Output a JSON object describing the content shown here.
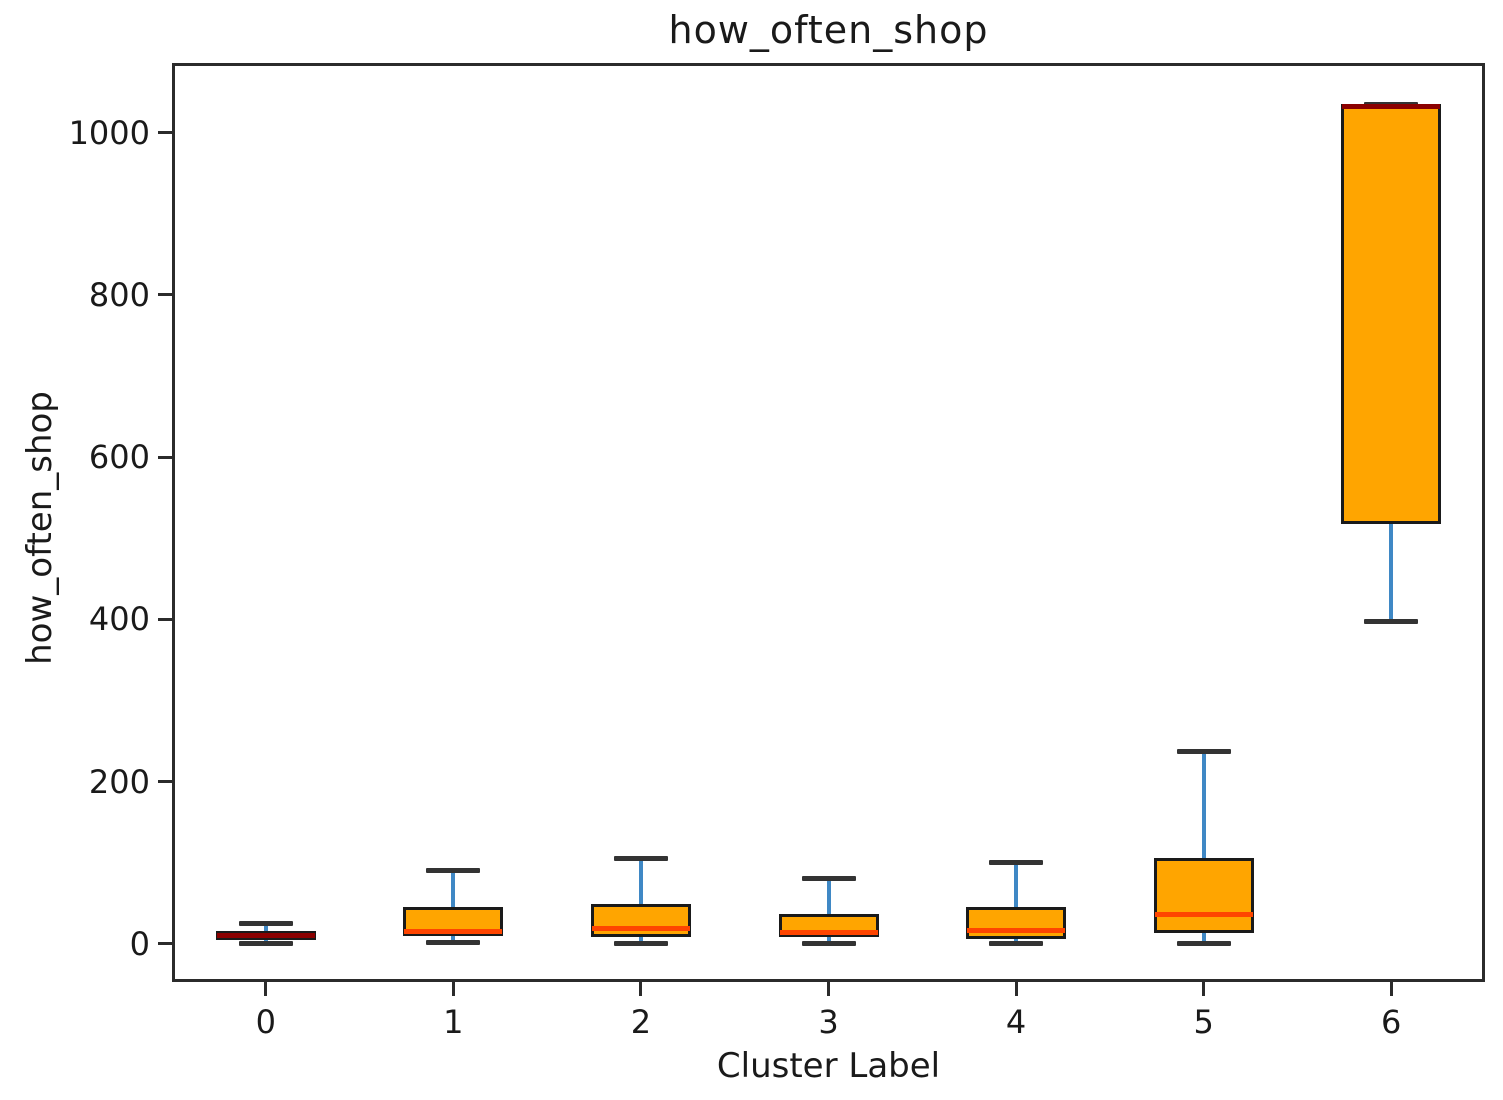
{
  "chart_data": {
    "type": "boxplot",
    "title": "how_often_shop",
    "xlabel": "Cluster Label",
    "ylabel": "how_often_shop",
    "categories": [
      "0",
      "1",
      "2",
      "3",
      "4",
      "5",
      "6"
    ],
    "yticks": [
      0,
      200,
      400,
      600,
      800,
      1000
    ],
    "ylim": [
      -47,
      1086
    ],
    "grid": false,
    "legend": false,
    "boxes": [
      {
        "category": "0",
        "whislo": 0,
        "q1": 5,
        "med": 10,
        "q3": 16,
        "whishi": 25,
        "median_color": "#8b0000"
      },
      {
        "category": "1",
        "whislo": 2,
        "q1": 10,
        "med": 15,
        "q3": 45,
        "whishi": 90,
        "median_color": "#ff4500"
      },
      {
        "category": "2",
        "whislo": 0,
        "q1": 9,
        "med": 19,
        "q3": 49,
        "whishi": 105,
        "median_color": "#ff4500"
      },
      {
        "category": "3",
        "whislo": 0,
        "q1": 8,
        "med": 14,
        "q3": 37,
        "whishi": 80,
        "median_color": "#ff4500"
      },
      {
        "category": "4",
        "whislo": 1,
        "q1": 6,
        "med": 17,
        "q3": 45,
        "whishi": 100,
        "median_color": "#ff4500"
      },
      {
        "category": "5",
        "whislo": 1,
        "q1": 14,
        "med": 36,
        "q3": 106,
        "whishi": 237,
        "median_color": "#ff4500"
      },
      {
        "category": "6",
        "whislo": 398,
        "q1": 518,
        "med": 1032,
        "q3": 1035,
        "whishi": 1035,
        "median_color": "#8b0000"
      }
    ],
    "colors": {
      "box_fill": "#ffa500",
      "box_edge": "#1a1a1a",
      "whisker": "#3f88c5",
      "cap": "#333333",
      "median": "#ff4500",
      "median_dark": "#8b0000",
      "spine": "#2b2b2b",
      "text": "#1a1a1a"
    }
  }
}
